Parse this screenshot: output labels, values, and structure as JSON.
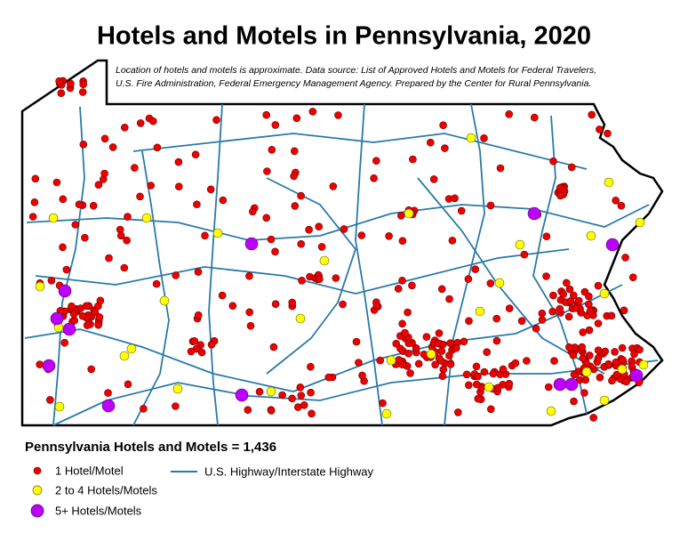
{
  "header": {
    "title": "Hotels and Motels in Pennsylvania, 2020",
    "note": [
      "Location of hotels and motels is approximate. Data source: List of Approved Hotels and Motels for Federal Travelers,",
      "U.S. Fire Administration, Federal Emergency Management Agency. Prepared by the Center for Rural Pennsylvania."
    ]
  },
  "legend": {
    "total": "Pennsylvania Hotels and Motels = 1,436",
    "items": [
      "1 Hotel/Motel",
      "2 to 4 Hotels/Motels",
      "5+ Hotels/Motels",
      "U.S. Highway/Interstate Highway"
    ]
  }
}
